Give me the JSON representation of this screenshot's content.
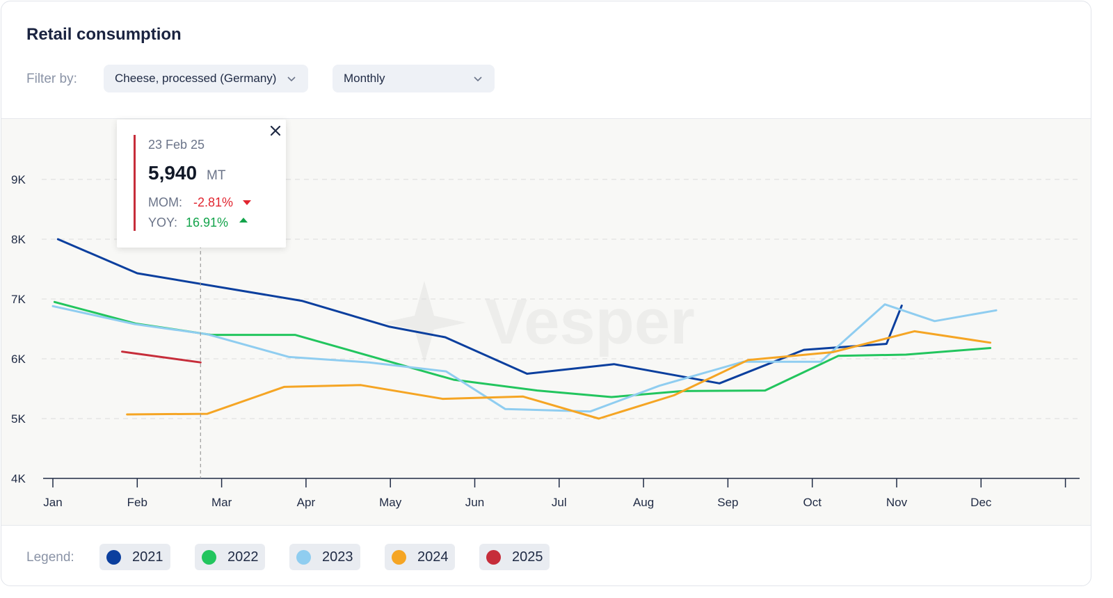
{
  "header": {
    "title": "Retail consumption",
    "filter_label": "Filter by:",
    "product_select": "Cheese, processed (Germany)",
    "period_select": "Monthly"
  },
  "watermark": "Vesper",
  "tooltip": {
    "date": "23 Feb 25",
    "value": "5,940",
    "unit": "MT",
    "mom_label": "MOM:",
    "mom_value": "-2.81%",
    "yoy_label": "YOY:",
    "yoy_value": "16.91%"
  },
  "legend": {
    "label": "Legend:",
    "items": [
      {
        "label": "2021",
        "color": "#0b3f9e"
      },
      {
        "label": "2022",
        "color": "#22c55e"
      },
      {
        "label": "2023",
        "color": "#8fcdf0"
      },
      {
        "label": "2024",
        "color": "#f5a524"
      },
      {
        "label": "2025",
        "color": "#c62d3a"
      }
    ]
  },
  "chart_data": {
    "type": "line",
    "x_ticks": [
      "Jan",
      "Feb",
      "Mar",
      "Apr",
      "May",
      "Jun",
      "Jul",
      "Aug",
      "Sep",
      "Oct",
      "Nov",
      "Dec"
    ],
    "y_ticks": [
      "4K",
      "5K",
      "6K",
      "7K",
      "8K",
      "9K"
    ],
    "ylim": [
      4000,
      10000
    ],
    "grid": "horizontal dashed",
    "series": [
      {
        "name": "2021",
        "color": "#0b3f9e",
        "x": [
          0.06,
          1.0,
          2.95,
          3.98,
          4.65,
          5.62,
          6.65,
          7.9,
          8.9,
          9.88,
          10.06
        ],
        "y": [
          8000,
          7430,
          6970,
          6540,
          6360,
          5750,
          5910,
          5590,
          6150,
          6250,
          6890
        ]
      },
      {
        "name": "2022",
        "color": "#22c55e",
        "x": [
          0.02,
          0.98,
          1.88,
          2.87,
          4.75,
          5.74,
          6.62,
          7.46,
          8.44,
          9.31,
          10.11,
          11.11
        ],
        "y": [
          6950,
          6590,
          6400,
          6400,
          5650,
          5470,
          5360,
          5460,
          5470,
          6050,
          6070,
          6180
        ]
      },
      {
        "name": "2023",
        "color": "#8fcdf0",
        "x": [
          0.0,
          0.97,
          1.83,
          2.8,
          3.75,
          4.66,
          5.36,
          6.37,
          7.19,
          8.18,
          9.1,
          9.86,
          10.45,
          11.18
        ],
        "y": [
          6880,
          6580,
          6410,
          6030,
          5940,
          5790,
          5160,
          5120,
          5550,
          5950,
          5950,
          6910,
          6630,
          6810
        ]
      },
      {
        "name": "2024",
        "color": "#f5a524",
        "x": [
          0.88,
          1.83,
          2.74,
          3.65,
          4.62,
          5.57,
          6.47,
          7.36,
          8.24,
          9.24,
          10.21,
          11.11
        ],
        "y": [
          5070,
          5080,
          5530,
          5560,
          5330,
          5370,
          5000,
          5390,
          5980,
          6110,
          6460,
          6270
        ]
      },
      {
        "name": "2025",
        "color": "#c62d3a",
        "x": [
          0.82,
          1.75
        ],
        "y": [
          6120,
          5940
        ]
      }
    ],
    "marker_x": 1.75
  }
}
